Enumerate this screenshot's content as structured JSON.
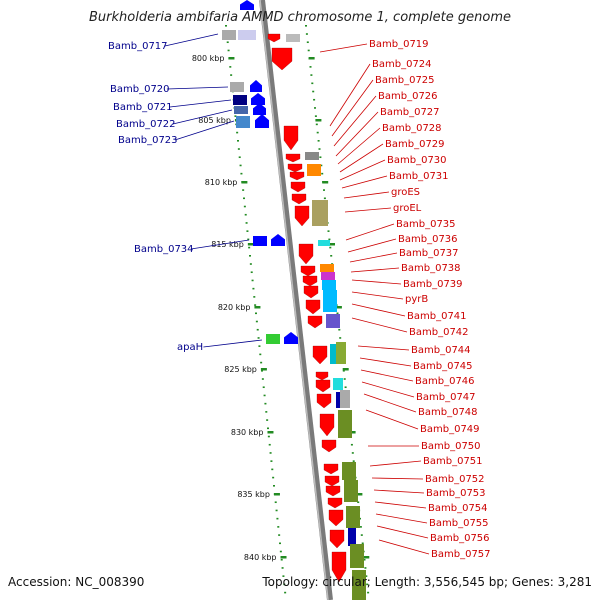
{
  "title": "Burkholderia ambifaria AMMD chromosome 1, complete genome",
  "footer": {
    "accession": "Accession: NC_008390",
    "stats": "Topology: circular; Length: 3,556,545 bp; Genes: 3,281"
  },
  "colors": {
    "left_label": "#00008b",
    "right_label": "#cc0000",
    "backbone": "#888888",
    "tick": "#228b22"
  },
  "ticks": [
    "800 kbp",
    "805 kbp",
    "810 kbp",
    "815 kbp",
    "820 kbp",
    "825 kbp",
    "830 kbp",
    "835 kbp",
    "840 kbp"
  ],
  "left_genes": [
    {
      "name": "Bamb_0717"
    },
    {
      "name": "Bamb_0720"
    },
    {
      "name": "Bamb_0721"
    },
    {
      "name": "Bamb_0722"
    },
    {
      "name": "Bamb_0723"
    },
    {
      "name": "Bamb_0734"
    },
    {
      "name": "apaH"
    }
  ],
  "right_genes": [
    {
      "name": "Bamb_0719"
    },
    {
      "name": "Bamb_0724"
    },
    {
      "name": "Bamb_0725"
    },
    {
      "name": "Bamb_0726"
    },
    {
      "name": "Bamb_0727"
    },
    {
      "name": "Bamb_0728"
    },
    {
      "name": "Bamb_0729"
    },
    {
      "name": "Bamb_0730"
    },
    {
      "name": "Bamb_0731"
    },
    {
      "name": "groES"
    },
    {
      "name": "groEL"
    },
    {
      "name": "Bamb_0735"
    },
    {
      "name": "Bamb_0736"
    },
    {
      "name": "Bamb_0737"
    },
    {
      "name": "Bamb_0738"
    },
    {
      "name": "Bamb_0739"
    },
    {
      "name": "pyrB"
    },
    {
      "name": "Bamb_0741"
    },
    {
      "name": "Bamb_0742"
    },
    {
      "name": "Bamb_0744"
    },
    {
      "name": "Bamb_0745"
    },
    {
      "name": "Bamb_0746"
    },
    {
      "name": "Bamb_0747"
    },
    {
      "name": "Bamb_0748"
    },
    {
      "name": "Bamb_0749"
    },
    {
      "name": "Bamb_0750"
    },
    {
      "name": "Bamb_0751"
    },
    {
      "name": "Bamb_0752"
    },
    {
      "name": "Bamb_0753"
    },
    {
      "name": "Bamb_0754"
    },
    {
      "name": "Bamb_0755"
    },
    {
      "name": "Bamb_0756"
    },
    {
      "name": "Bamb_0757"
    }
  ]
}
